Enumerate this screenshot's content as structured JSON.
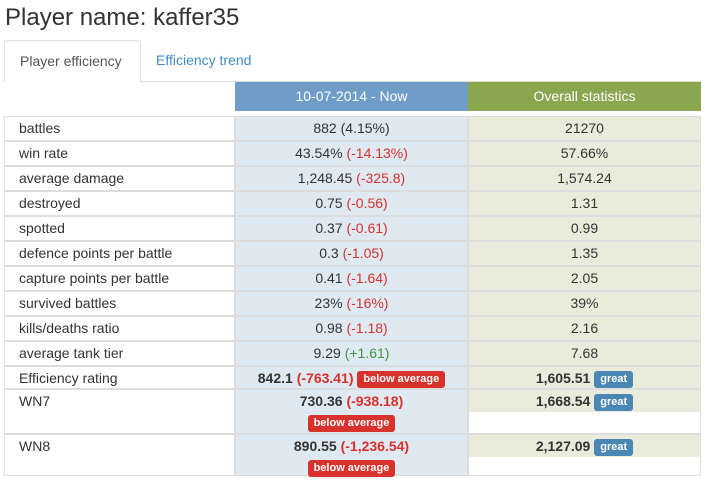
{
  "page": {
    "title": "Player name: kaffer35"
  },
  "tabs": [
    {
      "label": "Player efficiency",
      "active": true
    },
    {
      "label": "Efficiency trend",
      "active": false
    }
  ],
  "table": {
    "headers": {
      "period": "10-07-2014 - Now",
      "overall": "Overall statistics"
    },
    "rows": [
      {
        "label": "battles",
        "period_value": "882",
        "period_change": "(4.15%)",
        "change_type": "neutral",
        "overall_value": "21270"
      },
      {
        "label": "win rate",
        "period_value": "43.54%",
        "period_change": "(-14.13%)",
        "change_type": "negative",
        "overall_value": "57.66%"
      },
      {
        "label": "average damage",
        "period_value": "1,248.45",
        "period_change": "(-325.8)",
        "change_type": "negative",
        "overall_value": "1,574.24"
      },
      {
        "label": "destroyed",
        "period_value": "0.75",
        "period_change": "(-0.56)",
        "change_type": "negative",
        "overall_value": "1.31"
      },
      {
        "label": "spotted",
        "period_value": "0.37",
        "period_change": "(-0.61)",
        "change_type": "negative",
        "overall_value": "0.99"
      },
      {
        "label": "defence points per battle",
        "period_value": "0.3",
        "period_change": "(-1.05)",
        "change_type": "negative",
        "overall_value": "1.35"
      },
      {
        "label": "capture points per battle",
        "period_value": "0.41",
        "period_change": "(-1.64)",
        "change_type": "negative",
        "overall_value": "2.05"
      },
      {
        "label": "survived battles",
        "period_value": "23%",
        "period_change": "(-16%)",
        "change_type": "negative",
        "overall_value": "39%"
      },
      {
        "label": "kills/deaths ratio",
        "period_value": "0.98",
        "period_change": "(-1.18)",
        "change_type": "negative",
        "overall_value": "2.16"
      },
      {
        "label": "average tank tier",
        "period_value": "9.29",
        "period_change": "(+1.61)",
        "change_type": "positive",
        "overall_value": "7.68"
      }
    ],
    "ratings": [
      {
        "label": "Efficiency rating",
        "period_value": "842.1",
        "period_change": "(-763.41)",
        "period_badge": "below average",
        "overall_value": "1,605.51",
        "overall_badge": "great"
      },
      {
        "label": "WN7",
        "period_value": "730.36",
        "period_change": "(-938.18)",
        "period_badge": "below average",
        "overall_value": "1,668.54",
        "overall_badge": "great"
      },
      {
        "label": "WN8",
        "period_value": "890.55",
        "period_change": "(-1,236.54)",
        "period_badge": "below average",
        "overall_value": "2,127.09",
        "overall_badge": "great"
      }
    ]
  },
  "colors": {
    "period_header": "#6f9dc8",
    "overall_header": "#8aa74f",
    "negative": "#d9312b",
    "positive": "#3c9a3c",
    "badge_below_average": "#d9312b",
    "badge_great": "#4a87b4"
  }
}
